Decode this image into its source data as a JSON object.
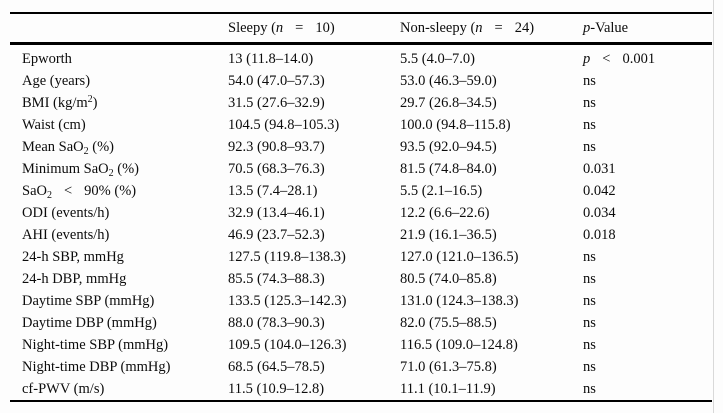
{
  "page": {
    "background": "#fdfdfd",
    "rule_color": "#000000",
    "text_color": "#0c0c0c"
  },
  "table": {
    "header": {
      "label": "",
      "sleepy": [
        {
          "t": "Sleepy ("
        },
        {
          "t": "n",
          "s": "italic"
        },
        {
          "t": "=",
          "s": "gap"
        },
        {
          "t": "10)"
        }
      ],
      "nonsleepy": [
        {
          "t": "Non-sleepy ("
        },
        {
          "t": "n",
          "s": "italic"
        },
        {
          "t": "=",
          "s": "gap"
        },
        {
          "t": "24)"
        }
      ],
      "pvalue": [
        {
          "t": "p",
          "s": "italic"
        },
        {
          "t": "-Value"
        }
      ]
    },
    "rows": [
      {
        "label": "Epworth",
        "sleepy": "13 (11.8–14.0)",
        "nonsleepy": "5.5 (4.0–7.0)",
        "p": [
          {
            "t": "p",
            "s": "italic"
          },
          {
            "t": "<",
            "s": "gap"
          },
          {
            "t": "0.001"
          }
        ]
      },
      {
        "label": "Age (years)",
        "sleepy": "54.0 (47.0–57.3)",
        "nonsleepy": "53.0 (46.3–59.0)",
        "p": "ns"
      },
      {
        "label": [
          {
            "t": "BMI (kg/m"
          },
          {
            "t": "2",
            "s": "sup"
          },
          {
            "t": ")"
          }
        ],
        "sleepy": "31.5 (27.6–32.9)",
        "nonsleepy": "29.7 (26.8–34.5)",
        "p": "ns"
      },
      {
        "label": "Waist (cm)",
        "sleepy": "104.5 (94.8–105.3)",
        "nonsleepy": "100.0 (94.8–115.8)",
        "p": "ns"
      },
      {
        "label": [
          {
            "t": "Mean SaO"
          },
          {
            "t": "2",
            "s": "sub"
          },
          {
            "t": " (%)"
          }
        ],
        "sleepy": "92.3 (90.8–93.7)",
        "nonsleepy": "93.5 (92.0–94.5)",
        "p": "ns"
      },
      {
        "label": [
          {
            "t": "Minimum SaO"
          },
          {
            "t": "2",
            "s": "sub"
          },
          {
            "t": " (%)"
          }
        ],
        "sleepy": "70.5 (68.3–76.3)",
        "nonsleepy": "81.5 (74.8–84.0)",
        "p": "0.031"
      },
      {
        "label": [
          {
            "t": "SaO"
          },
          {
            "t": "2",
            "s": "sub"
          },
          {
            "t": "<",
            "s": "gap"
          },
          {
            "t": "90% (%)"
          }
        ],
        "sleepy": "13.5 (7.4–28.1)",
        "nonsleepy": "5.5 (2.1–16.5)",
        "p": "0.042"
      },
      {
        "label": "ODI (events/h)",
        "sleepy": "32.9 (13.4–46.1)",
        "nonsleepy": "12.2 (6.6–22.6)",
        "p": "0.034"
      },
      {
        "label": "AHI (events/h)",
        "sleepy": "46.9 (23.7–52.3)",
        "nonsleepy": "21.9 (16.1–36.5)",
        "p": "0.018"
      },
      {
        "label": "24-h SBP, mmHg",
        "sleepy": "127.5 (119.8–138.3)",
        "nonsleepy": "127.0 (121.0–136.5)",
        "p": "ns"
      },
      {
        "label": "24-h DBP, mmHg",
        "sleepy": "85.5 (74.3–88.3)",
        "nonsleepy": "80.5 (74.0–85.8)",
        "p": "ns"
      },
      {
        "label": "Daytime SBP (mmHg)",
        "sleepy": "133.5 (125.3–142.3)",
        "nonsleepy": "131.0 (124.3–138.3)",
        "p": "ns"
      },
      {
        "label": "Daytime DBP (mmHg)",
        "sleepy": "88.0 (78.3–90.3)",
        "nonsleepy": "82.0 (75.5–88.5)",
        "p": "ns"
      },
      {
        "label": "Night-time SBP (mmHg)",
        "sleepy": "109.5 (104.0–126.3)",
        "nonsleepy": "116.5 (109.0–124.8)",
        "p": "ns"
      },
      {
        "label": "Night-time DBP (mmHg)",
        "sleepy": "68.5 (64.5–78.5)",
        "nonsleepy": "71.0 (61.3–75.8)",
        "p": "ns"
      },
      {
        "label": "cf-PWV (m/s)",
        "sleepy": "11.5 (10.9–12.8)",
        "nonsleepy": "11.1 (10.1–11.9)",
        "p": "ns"
      }
    ]
  }
}
